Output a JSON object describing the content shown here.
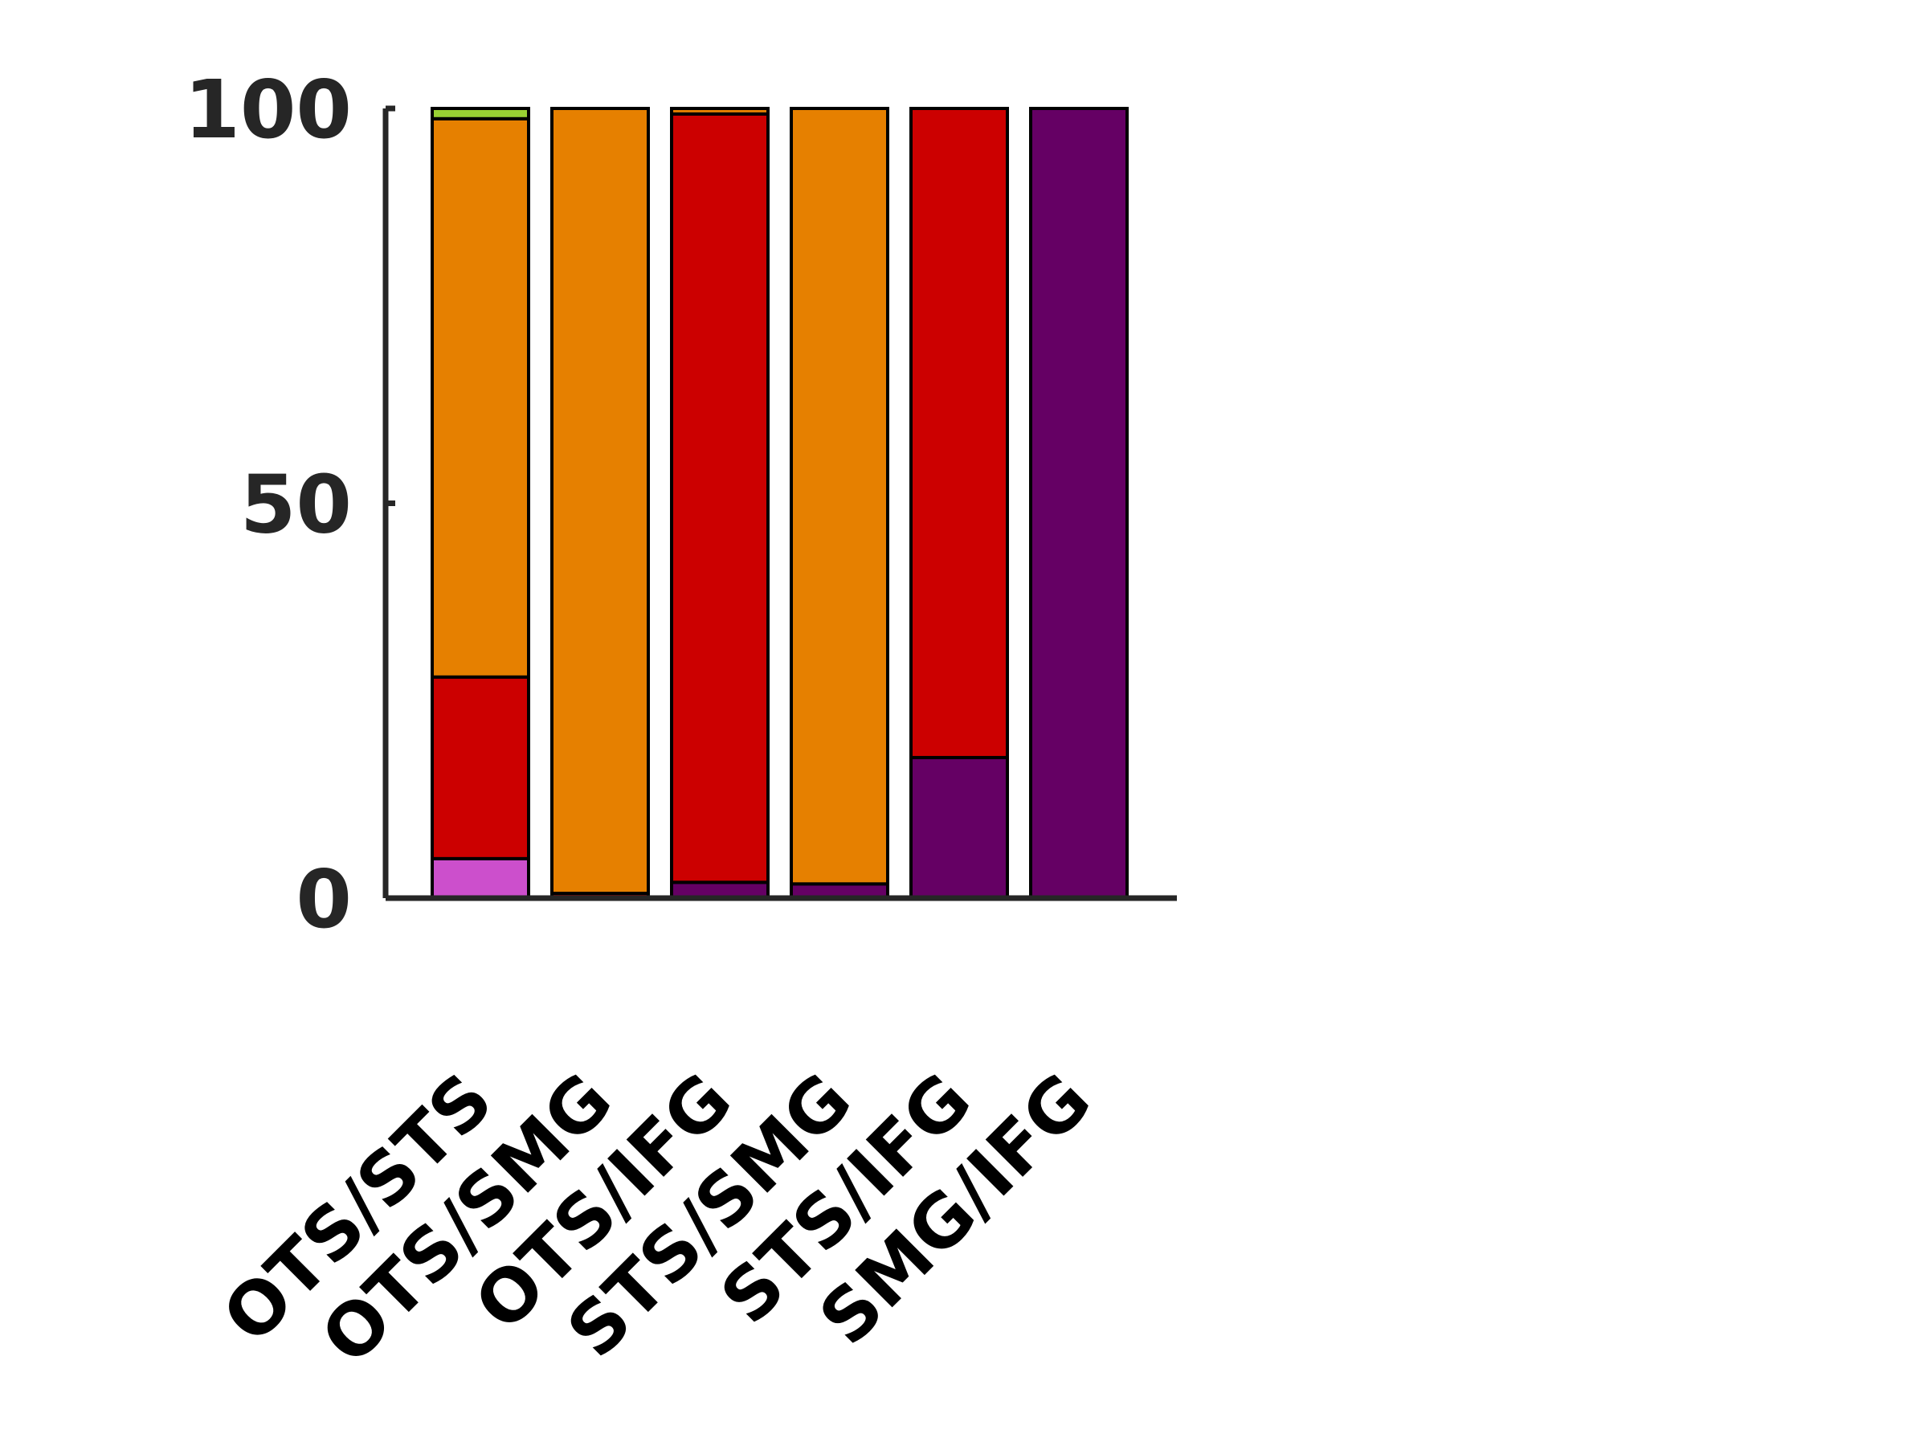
{
  "chart_data": {
    "type": "bar",
    "stacked": true,
    "title": "",
    "xlabel": "",
    "ylabel": "",
    "ylim": [
      0,
      100
    ],
    "yticks": [
      0,
      50,
      100
    ],
    "grid": false,
    "legend": "none",
    "categories": [
      "OTS/STS",
      "OTS/SMG",
      "OTS/IFG",
      "STS/SMG",
      "STS/IFG",
      "SMG/IFG"
    ],
    "series": [
      {
        "color": "#cc4fcc",
        "values": [
          5,
          0,
          0,
          0,
          0,
          0
        ]
      },
      {
        "color": "#650064",
        "values": [
          0,
          0,
          2,
          1.8,
          17.8,
          100
        ]
      },
      {
        "color": "#cc0000",
        "values": [
          23,
          0.6,
          97.3,
          0,
          82.2,
          0
        ]
      },
      {
        "color": "#e68000",
        "values": [
          70.7,
          99.4,
          0.7,
          98.2,
          0,
          0
        ]
      },
      {
        "color": "#99d133",
        "values": [
          1.3,
          0,
          0,
          0,
          0,
          0
        ]
      }
    ]
  }
}
